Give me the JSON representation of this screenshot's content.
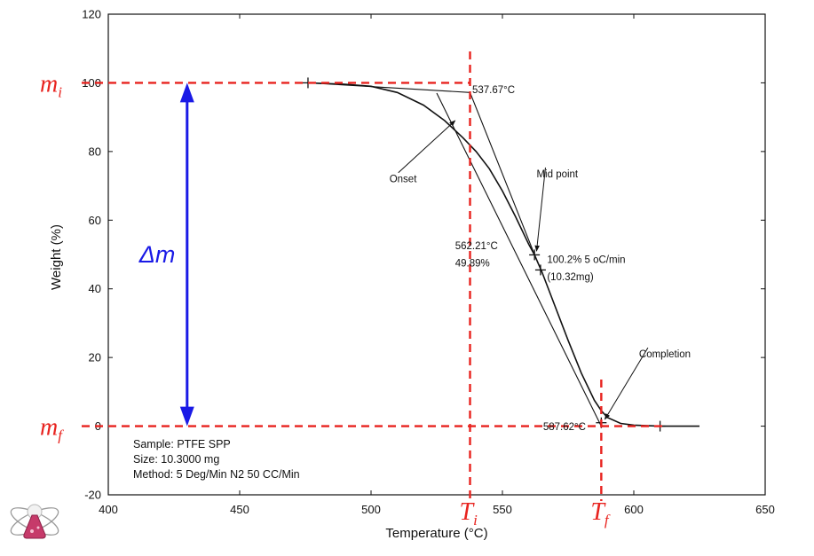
{
  "chart_data": {
    "type": "line",
    "xlabel": "Temperature (°C)",
    "ylabel": "Weight (%)",
    "xlim": [
      400,
      650
    ],
    "ylim": [
      -20,
      120
    ],
    "x_ticks": [
      400,
      450,
      500,
      550,
      600,
      650
    ],
    "y_ticks": [
      -20,
      0,
      20,
      40,
      60,
      80,
      100,
      120
    ],
    "grid": false,
    "series": [
      {
        "values_xy": [
          [
            476,
            100
          ],
          [
            490,
            99.6
          ],
          [
            500,
            99
          ],
          [
            510,
            97.2
          ],
          [
            520,
            93.5
          ],
          [
            528,
            89
          ],
          [
            535,
            84
          ],
          [
            540,
            80
          ],
          [
            545,
            75
          ],
          [
            550,
            68.5
          ],
          [
            555,
            61
          ],
          [
            560,
            53
          ],
          [
            562.21,
            49.89
          ],
          [
            565,
            45
          ],
          [
            570,
            35
          ],
          [
            575,
            25
          ],
          [
            580,
            15.5
          ],
          [
            585,
            7.5
          ],
          [
            587.62,
            4.5
          ],
          [
            590,
            2.5
          ],
          [
            595,
            0.8
          ],
          [
            600,
            0.3
          ],
          [
            610,
            0
          ],
          [
            625,
            0
          ]
        ]
      }
    ],
    "tangent_lines": [
      {
        "points": [
          [
            476,
            100
          ],
          [
            537.67,
            97.2
          ]
        ]
      },
      {
        "points": [
          [
            537.67,
            97.2
          ],
          [
            562.2,
            50
          ]
        ]
      },
      {
        "points": [
          [
            525,
            97
          ],
          [
            587.62,
            0
          ]
        ]
      }
    ],
    "markers": [
      {
        "x": 476,
        "y": 100
      },
      {
        "x": 562.21,
        "y": 49.89
      },
      {
        "x": 564.5,
        "y": 45.5
      },
      {
        "x": 587.62,
        "y": 1
      },
      {
        "x": 610,
        "y": 0
      }
    ],
    "annotations": [
      {
        "text": "537.67°C",
        "x": 538.5,
        "y": 97
      },
      {
        "text": "Onset",
        "x": 507,
        "y": 71,
        "arrow_to": [
          532,
          89
        ]
      },
      {
        "text": "Mid point",
        "x": 563,
        "y": 72.5,
        "arrow_to": [
          563,
          51
        ]
      },
      {
        "text": "562.21°C",
        "x": 532,
        "y": 51.5
      },
      {
        "text": "49.89%",
        "x": 532,
        "y": 46.5
      },
      {
        "text": "100.2% 5 oC/min",
        "x": 567,
        "y": 47.5
      },
      {
        "text": "(10.32mg)",
        "x": 567,
        "y": 42.5
      },
      {
        "text": "Completion",
        "x": 602,
        "y": 20,
        "arrow_to": [
          589,
          2
        ]
      },
      {
        "text": "587.62°C",
        "x": 565.5,
        "y": -1.2
      }
    ],
    "overlay": {
      "initial_mass_level": 100,
      "final_mass_level": 0,
      "onset_temperature": 537.67,
      "final_temperature": 587.62,
      "delta_arrow_x": 430,
      "colors": {
        "guides": "#e8231f",
        "delta_arrow": "#1a1ae6"
      },
      "symbols": {
        "mi": {
          "base": "m",
          "sub": "i"
        },
        "mf": {
          "base": "m",
          "sub": "f"
        },
        "ti": {
          "base": "T",
          "sub": "i"
        },
        "tf": {
          "base": "T",
          "sub": "f"
        },
        "dm": "Δm"
      }
    }
  },
  "sample_info": {
    "sample": "Sample: PTFE SPP",
    "size": "Size:   10.3000 mg",
    "method": "Method: 5 Deg/Min N2 50 CC/Min"
  },
  "logo": {
    "icon": "chemistry-flask-atom-icon",
    "colors": {
      "body": "#c63a6a",
      "orbit": "#9a9a9a"
    }
  }
}
